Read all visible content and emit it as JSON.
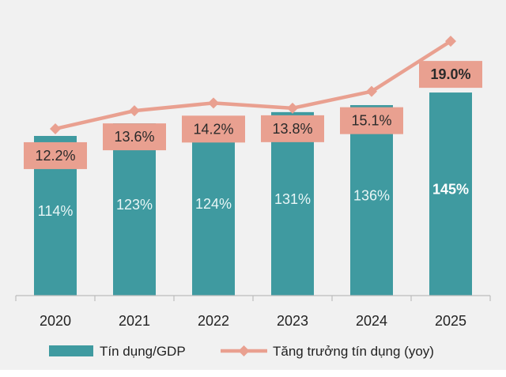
{
  "chart_data": {
    "type": "bar",
    "categories": [
      "2020",
      "2021",
      "2022",
      "2023",
      "2024",
      "2025"
    ],
    "series": [
      {
        "name": "Tín dụng/GDP",
        "kind": "bar",
        "values": [
          114,
          123,
          124,
          131,
          136,
          145
        ],
        "labels": [
          "114%",
          "123%",
          "124%",
          "131%",
          "136%",
          "145%"
        ]
      },
      {
        "name": "Tăng trưởng tín dụng (yoy)",
        "kind": "line",
        "values": [
          12.2,
          13.6,
          14.2,
          13.8,
          15.1,
          19.0
        ],
        "labels": [
          "12.2%",
          "13.6%",
          "14.2%",
          "13.8%",
          "15.1%",
          "19.0%"
        ]
      }
    ],
    "title": "",
    "xlabel": "",
    "ylabel": "",
    "legend_position": "bottom",
    "grid": false,
    "colors": {
      "bar": "#3f9aa0",
      "line": "#e9a090",
      "line_label_bg": "#e9a090",
      "axis": "#bdbdbd",
      "plot_bg": "#f1f1f1"
    }
  }
}
